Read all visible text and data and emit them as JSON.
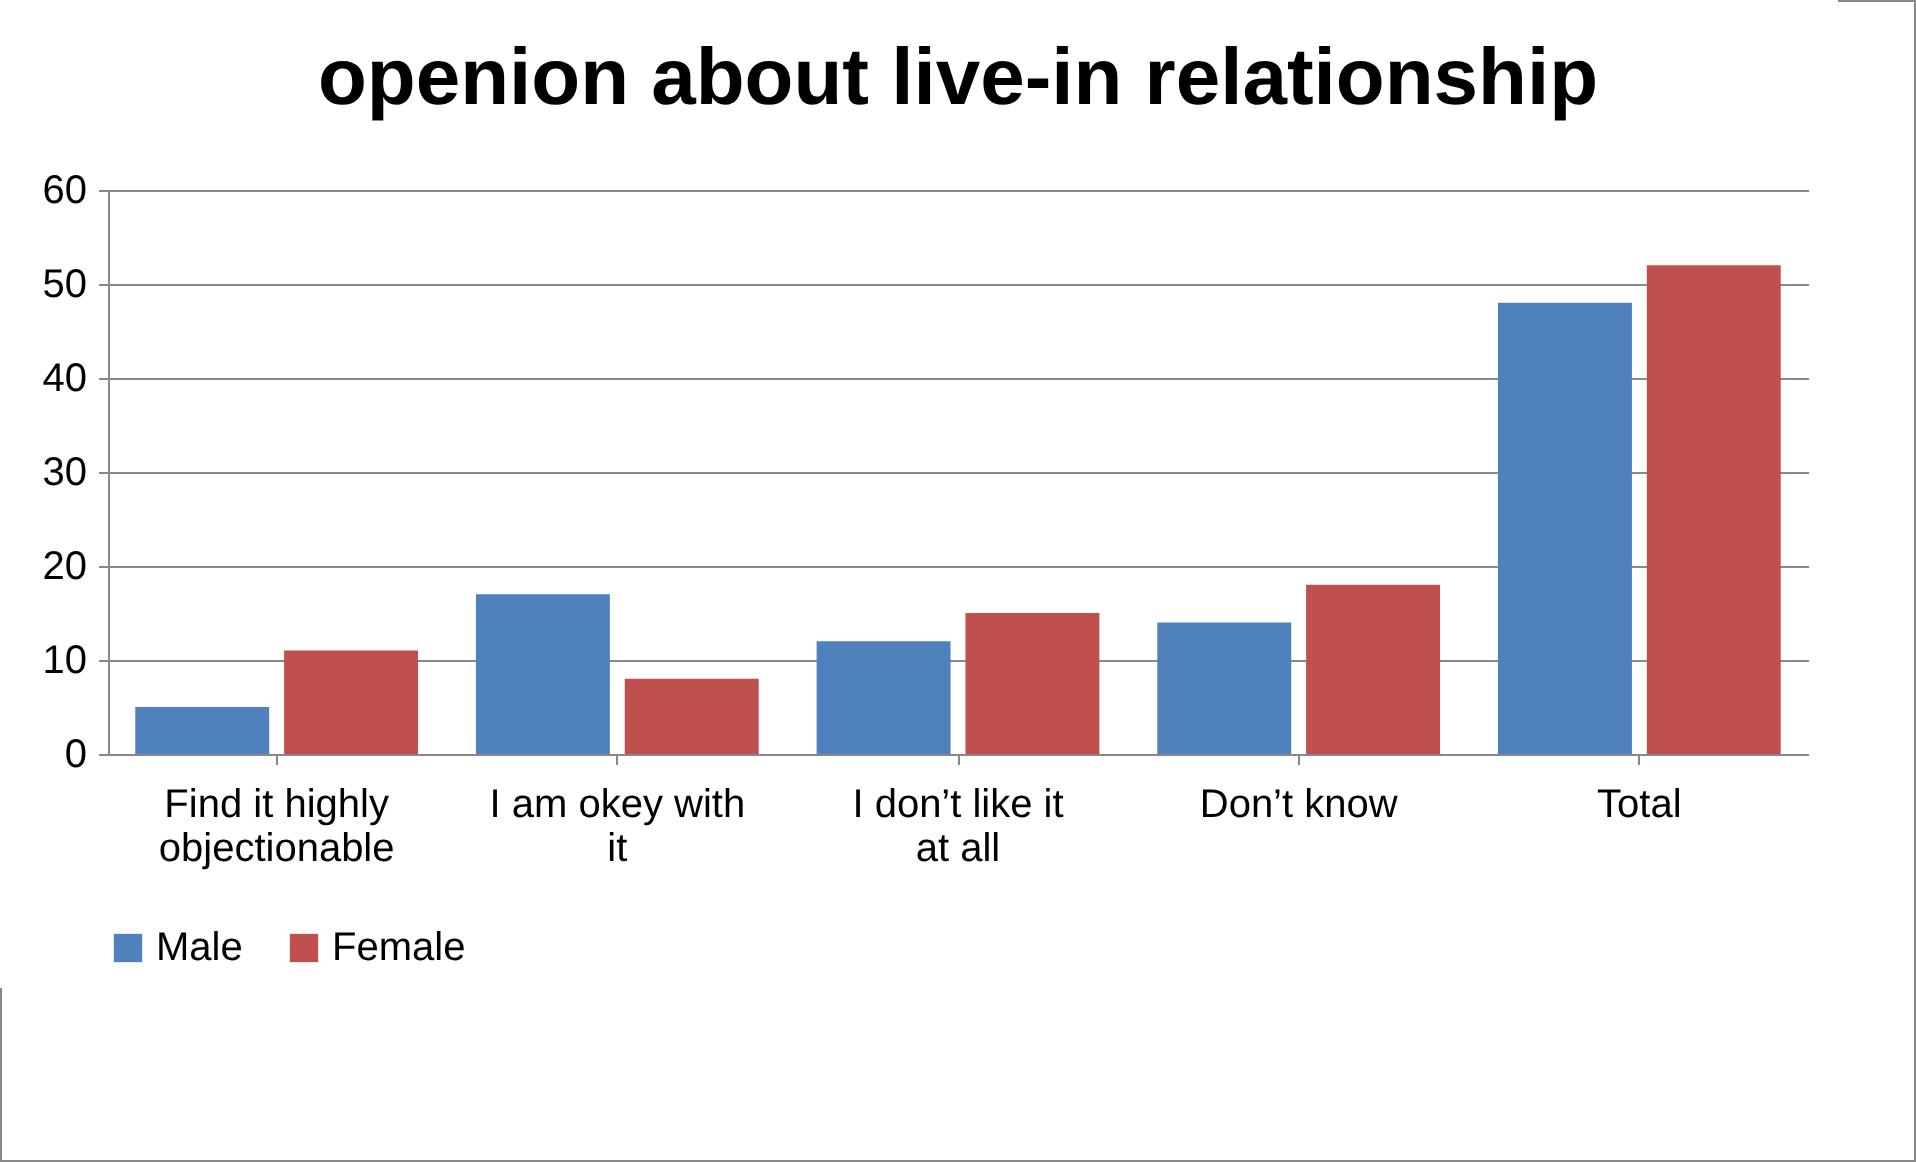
{
  "chart_data": {
    "type": "bar",
    "title": "openion about live-in relationship",
    "categories": [
      "Find it highly objectionable",
      "I am okey with it",
      "I don’t like it at all",
      "Don’t know",
      "Total"
    ],
    "series": [
      {
        "name": "Male",
        "color": "#4f81bd",
        "values": [
          5,
          17,
          12,
          14,
          48
        ]
      },
      {
        "name": "Female",
        "color": "#c0504d",
        "values": [
          11,
          8,
          15,
          18,
          52
        ]
      }
    ],
    "ylim": [
      0,
      60
    ],
    "yticks": [
      0,
      10,
      20,
      30,
      40,
      50,
      60
    ],
    "grid": "y",
    "legend": "bottom"
  }
}
